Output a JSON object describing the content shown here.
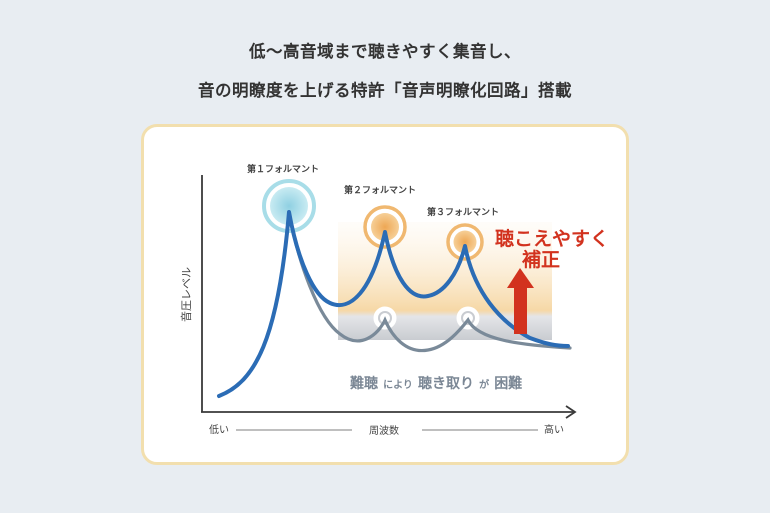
{
  "headline": {
    "line1": "低〜高音域まで聴きやすく集音し、",
    "line2": "音の明瞭度を上げる特許「音声明瞭化回路」搭載"
  },
  "diagram": {
    "y_axis_label": "音圧レベル",
    "x_axis_label": "周波数",
    "x_low": "低い",
    "x_high": "高い",
    "formants": [
      "第１フォルマント",
      "第２フォルマント",
      "第３フォルマント"
    ],
    "correction_line1": "聴こえやすく",
    "correction_line2": "補正",
    "difficulty_part1": "難聴",
    "difficulty_part2": "により",
    "difficulty_part3": "聴き取り",
    "difficulty_part4": "が",
    "difficulty_part5": "困難"
  },
  "colors": {
    "clear_curve": "#2b6cb5",
    "muffled_curve": "#7a8a99",
    "correction_red": "#d2321e",
    "card_border": "#f2dfae",
    "formant1_ring": "#a8dde8",
    "formant_ring_orange": "#f0b870"
  }
}
